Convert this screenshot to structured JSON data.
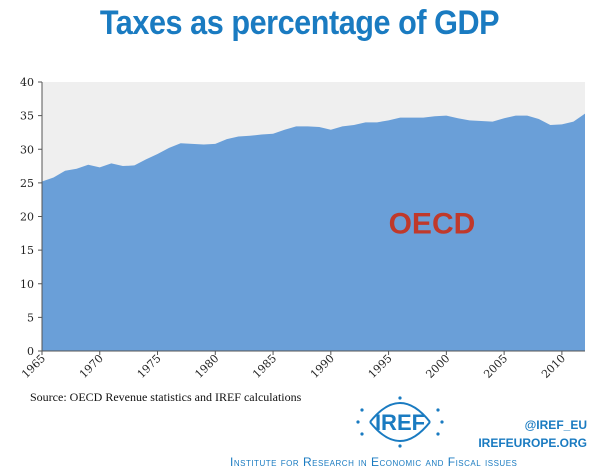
{
  "title": "Taxes as percentage of GDP",
  "source": "Source: OECD  Revenue statistics and IREF  calculations",
  "logo_text": "IREF",
  "twitter": "@IREF_EU",
  "website": "IREFEUROPE.ORG",
  "institute": "Institute for Research in Economic and Fiscal issues",
  "colors": {
    "title": "#1a7bc1",
    "area": "#6a9fd8",
    "plot_background": "#efefef",
    "series_label": "#c0392b",
    "brand": "#1a7bc1"
  },
  "chart_data": {
    "type": "area",
    "series_label": "OECD",
    "x": [
      1965,
      1966,
      1967,
      1968,
      1969,
      1970,
      1971,
      1972,
      1973,
      1974,
      1975,
      1976,
      1977,
      1978,
      1979,
      1980,
      1981,
      1982,
      1983,
      1984,
      1985,
      1986,
      1987,
      1988,
      1989,
      1990,
      1991,
      1992,
      1993,
      1994,
      1995,
      1996,
      1997,
      1998,
      1999,
      2000,
      2001,
      2002,
      2003,
      2004,
      2005,
      2006,
      2007,
      2008,
      2009,
      2010,
      2011,
      2012
    ],
    "series": [
      {
        "values": [
          25.2,
          25.8,
          26.8,
          27.1,
          27.7,
          27.3,
          27.9,
          27.5,
          27.6,
          28.5,
          29.3,
          30.2,
          30.9,
          30.8,
          30.7,
          30.8,
          31.5,
          31.9,
          32.0,
          32.2,
          32.3,
          32.9,
          33.4,
          33.4,
          33.3,
          32.9,
          33.4,
          33.6,
          34.0,
          34.0,
          34.3,
          34.7,
          34.7,
          34.7,
          34.9,
          35.0,
          34.6,
          34.3,
          34.2,
          34.1,
          34.6,
          35.0,
          35.0,
          34.5,
          33.6,
          33.7,
          34.1,
          35.3
        ]
      }
    ],
    "x_ticks": [
      1965,
      1970,
      1975,
      1980,
      1985,
      1990,
      1995,
      2000,
      2005,
      2010
    ],
    "y_ticks": [
      0,
      5,
      10,
      15,
      20,
      25,
      30,
      35,
      40
    ],
    "xlim": [
      1965,
      2012
    ],
    "ylim": [
      0,
      40
    ],
    "grid": false
  }
}
